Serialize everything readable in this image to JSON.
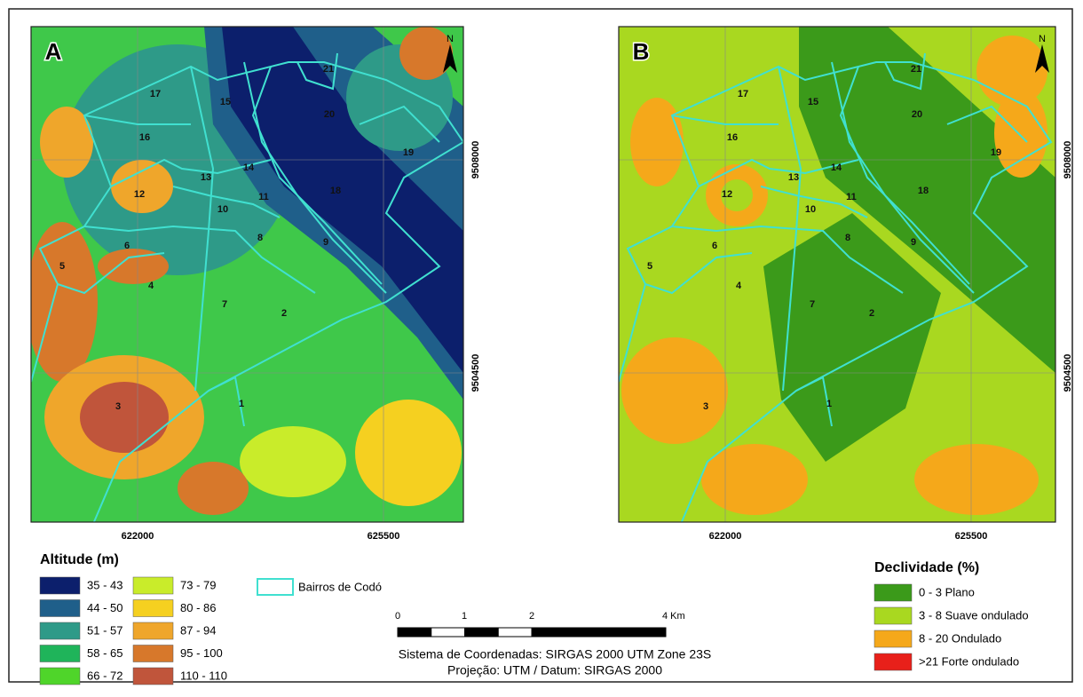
{
  "panels": [
    {
      "label": "A",
      "north": "N",
      "x_ticks": [
        "622000",
        "625500"
      ],
      "y_ticks": [
        "9508000",
        "9504500"
      ]
    },
    {
      "label": "B",
      "north": "N",
      "x_ticks": [
        "622000",
        "625500"
      ],
      "y_ticks": [
        "9508000",
        "9504500"
      ]
    }
  ],
  "neighborhood_labels": [
    "1",
    "2",
    "3",
    "4",
    "5",
    "6",
    "7",
    "8",
    "9",
    "10",
    "11",
    "12",
    "13",
    "14",
    "15",
    "16",
    "17",
    "18",
    "19",
    "20",
    "21"
  ],
  "legend_altitude": {
    "title": "Altitude (m)",
    "classes": [
      {
        "label": "35 - 43",
        "color": "#0c1f6c"
      },
      {
        "label": "44 - 50",
        "color": "#1f5f8a"
      },
      {
        "label": "51 - 57",
        "color": "#2e9a88"
      },
      {
        "label": "58 - 65",
        "color": "#1fb45a"
      },
      {
        "label": "66 - 72",
        "color": "#4fd52a"
      },
      {
        "label": "73 - 79",
        "color": "#c9ec2a"
      },
      {
        "label": "80 - 86",
        "color": "#f5d020"
      },
      {
        "label": "87 - 94",
        "color": "#efa62b"
      },
      {
        "label": "95 - 100",
        "color": "#d7782b"
      },
      {
        "label": "110 - 110",
        "color": "#c0553b"
      }
    ]
  },
  "legend_bairros": {
    "label": "Bairros de Codó",
    "color": "#40e0d0"
  },
  "scale_bar": {
    "ticks": [
      "0",
      "1",
      "2",
      "4 Km"
    ]
  },
  "projection": [
    "Sistema de Coordenadas: SIRGAS 2000 UTM Zone 23S",
    "Projeção: UTM / Datum: SIRGAS 2000"
  ],
  "legend_slope": {
    "title": "Declividade (%)",
    "classes": [
      {
        "label": "0 - 3 Plano",
        "color": "#3b9a1a"
      },
      {
        "label": "3 - 8 Suave ondulado",
        "color": "#a9d820"
      },
      {
        "label": "8 - 20 Ondulado",
        "color": "#f5a81a"
      },
      {
        "label": ">21 Forte ondulado",
        "color": "#e8201a"
      }
    ]
  }
}
